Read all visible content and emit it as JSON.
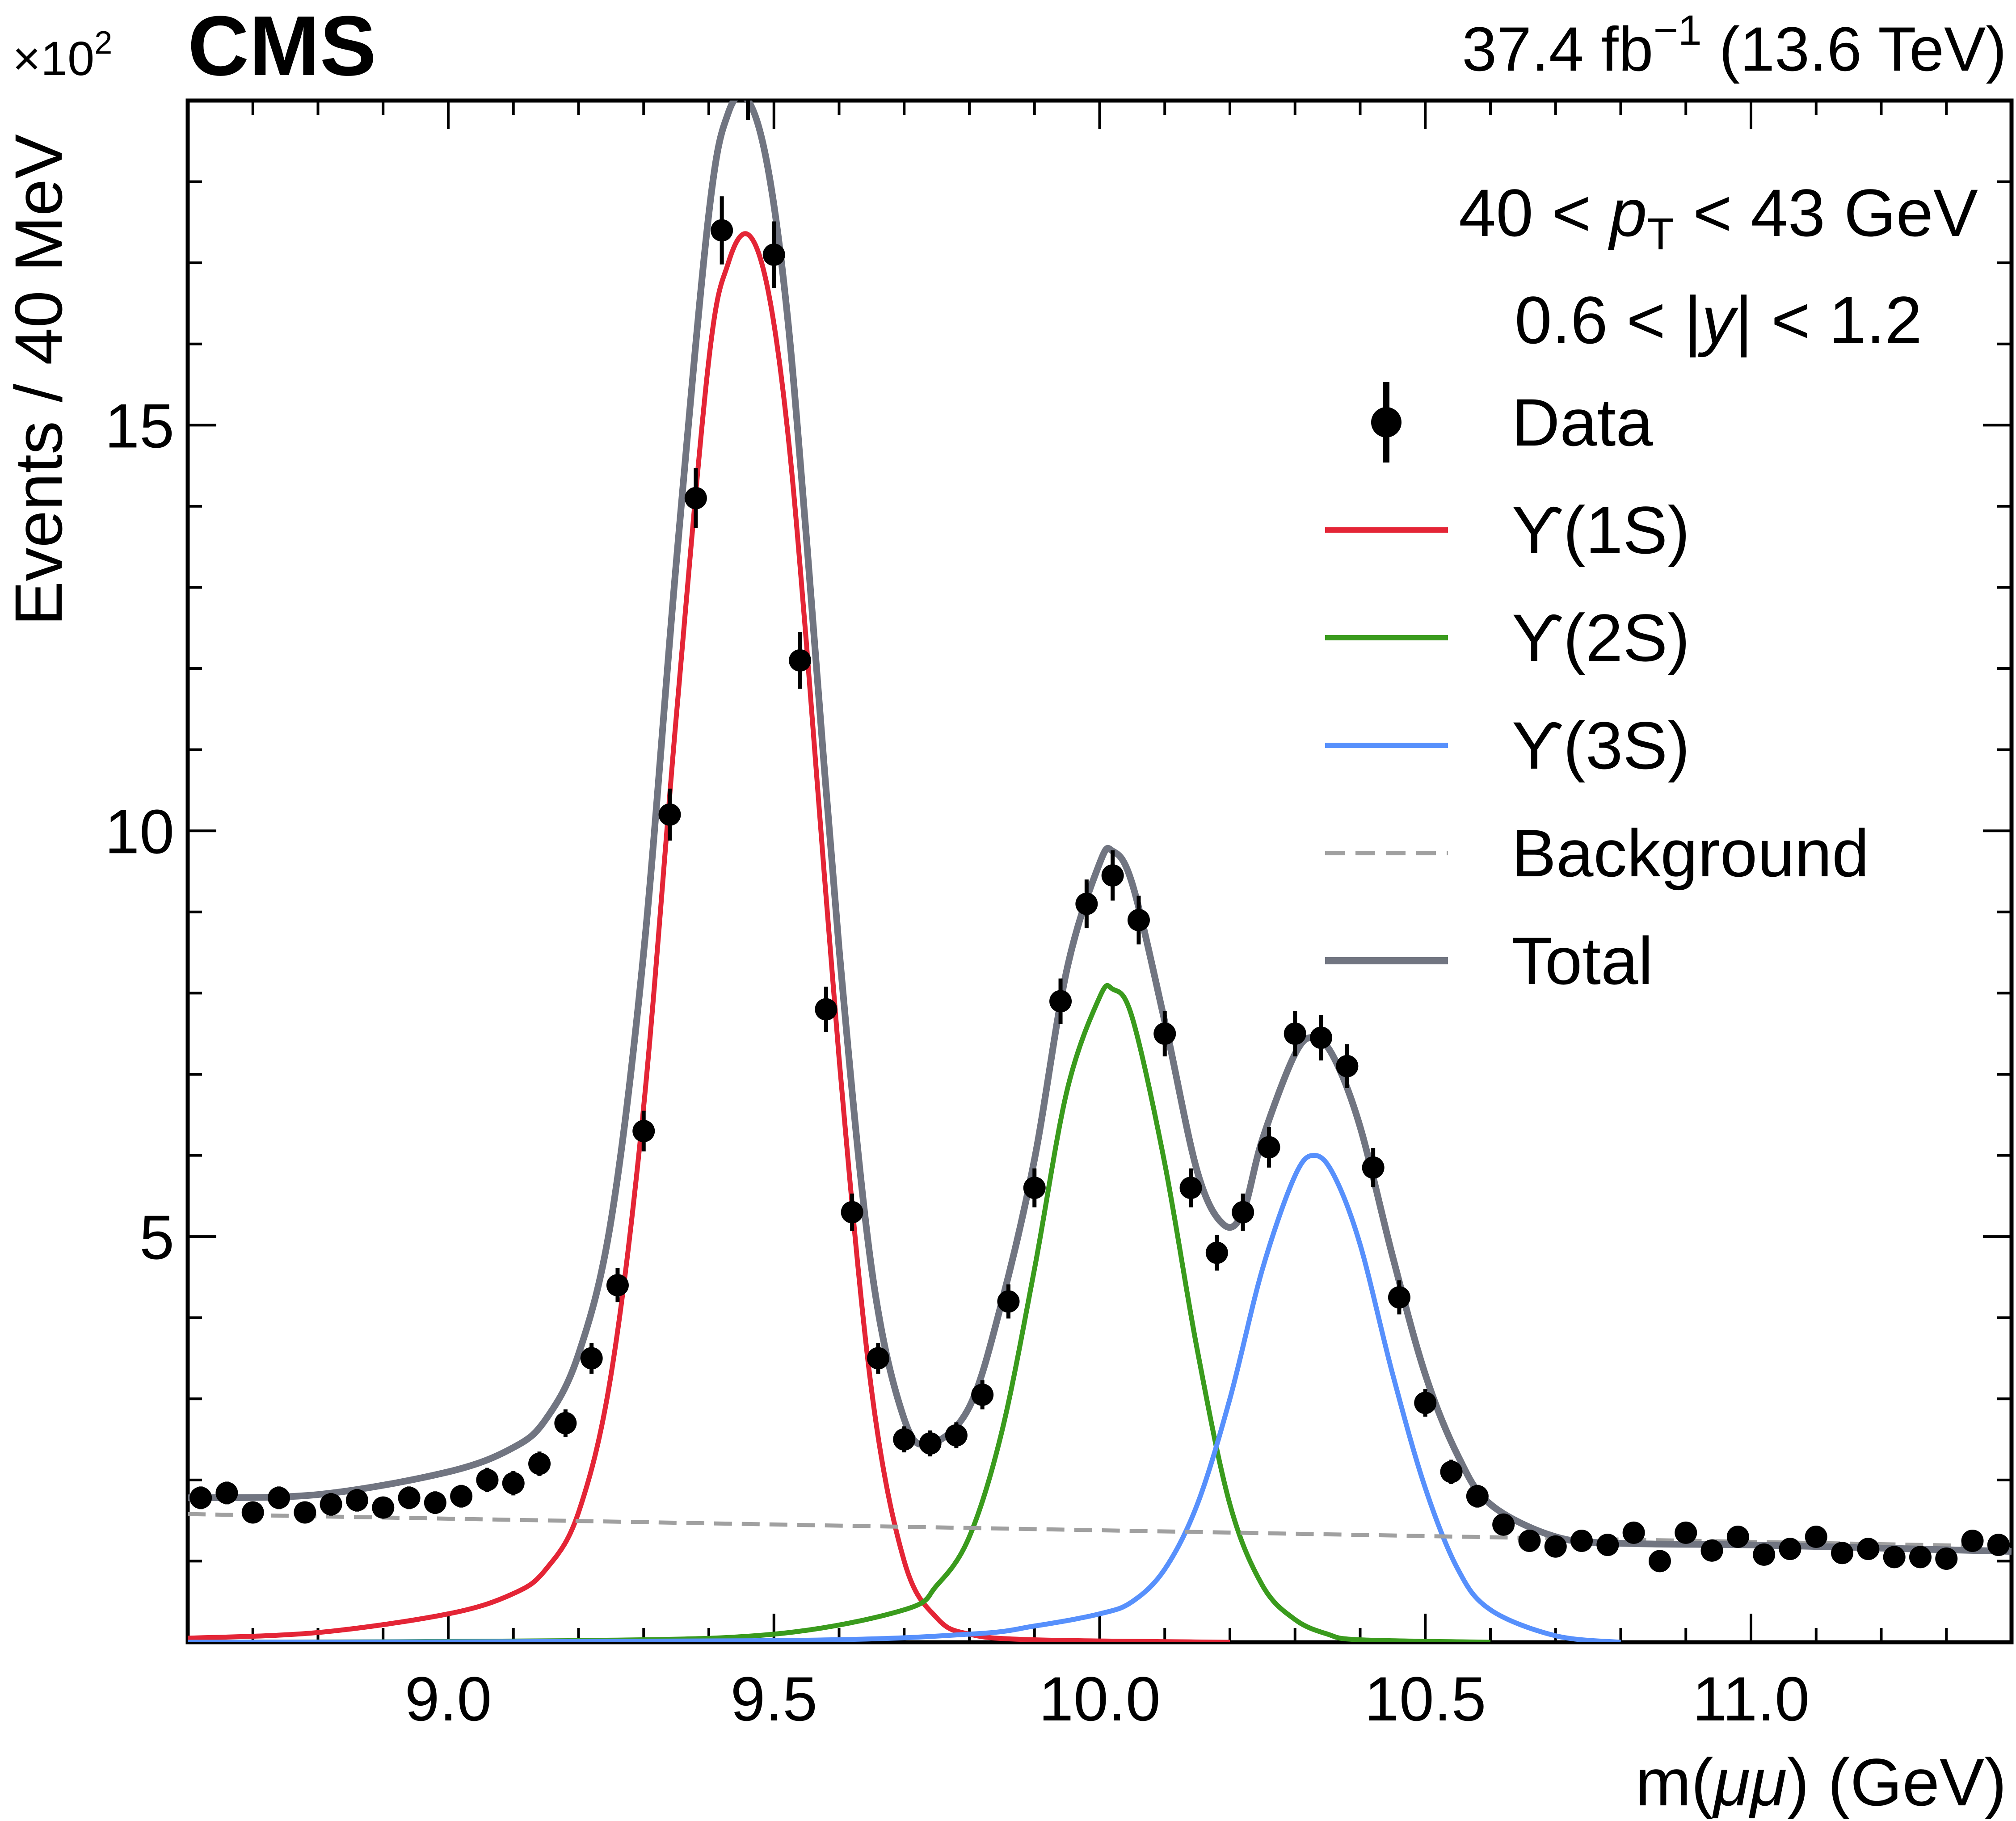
{
  "header": {
    "experiment": "CMS",
    "lumi_value": "37.4 fb",
    "lumi_exp": "−1",
    "energy": " (13.6 TeV)",
    "multiplier_base": "×10",
    "multiplier_exp": "2"
  },
  "cuts": {
    "pt_low": "40 < ",
    "pt_var": "p",
    "pt_sub": "T",
    "pt_high": " < 43 GeV",
    "y_low": "0.6 < |",
    "y_var": "y",
    "y_high": "| < 1.2"
  },
  "colors": {
    "data": "#000000",
    "ups1s": "#e42536",
    "ups2s": "#3a9b1d",
    "ups3s": "#5790fc",
    "background": "#a0a0a0",
    "total": "#717581"
  },
  "chart_data": {
    "type": "scatter",
    "xlabel_pre": "m(",
    "xlabel_var": "μμ",
    "xlabel_post": ") (GeV)",
    "ylabel": "Events / 40 MeV",
    "xlim": [
      8.6,
      11.4
    ],
    "ylim": [
      0,
      19
    ],
    "y_multiplier": "×10^2",
    "x_ticks": [
      "9.0",
      "9.5",
      "10.0",
      "10.5",
      "11.0"
    ],
    "y_ticks": [
      "5",
      "10",
      "15"
    ],
    "legend": [
      "Data",
      "ϒ(1S)",
      "ϒ(2S)",
      "ϒ(3S)",
      "Background",
      "Total"
    ],
    "legend_position": "top-right",
    "series": [
      {
        "name": "Data",
        "kind": "points",
        "x": [
          8.62,
          8.66,
          8.7,
          8.74,
          8.78,
          8.82,
          8.86,
          8.9,
          8.94,
          8.98,
          9.02,
          9.06,
          9.1,
          9.14,
          9.18,
          9.22,
          9.26,
          9.3,
          9.34,
          9.38,
          9.42,
          9.46,
          9.5,
          9.54,
          9.58,
          9.62,
          9.66,
          9.7,
          9.74,
          9.78,
          9.82,
          9.86,
          9.9,
          9.94,
          9.98,
          10.02,
          10.06,
          10.1,
          10.14,
          10.18,
          10.22,
          10.26,
          10.3,
          10.34,
          10.38,
          10.42,
          10.46,
          10.5,
          10.54,
          10.58,
          10.62,
          10.66,
          10.7,
          10.74,
          10.78,
          10.82,
          10.86,
          10.9,
          10.94,
          10.98,
          11.02,
          11.06,
          11.1,
          11.14,
          11.18,
          11.22,
          11.26,
          11.3,
          11.34,
          11.38
        ],
        "y": [
          1.78,
          1.84,
          1.6,
          1.78,
          1.6,
          1.7,
          1.75,
          1.66,
          1.78,
          1.72,
          1.8,
          2.0,
          1.96,
          2.2,
          2.7,
          3.5,
          4.4,
          6.3,
          10.2,
          14.1,
          17.4,
          19.2,
          17.1,
          12.1,
          7.8,
          5.3,
          3.5,
          2.5,
          2.45,
          2.55,
          3.05,
          4.2,
          5.6,
          7.9,
          9.1,
          9.45,
          8.9,
          7.5,
          5.6,
          4.8,
          5.3,
          6.1,
          7.5,
          7.45,
          7.1,
          5.85,
          4.25,
          2.95,
          2.1,
          1.8,
          1.45,
          1.25,
          1.18,
          1.25,
          1.2,
          1.35,
          1.0,
          1.35,
          1.13,
          1.3,
          1.08,
          1.15,
          1.3,
          1.1,
          1.15,
          1.05,
          1.05,
          1.03,
          1.25,
          1.2
        ],
        "yerr": [
          0.14,
          0.14,
          0.13,
          0.14,
          0.13,
          0.14,
          0.14,
          0.13,
          0.14,
          0.14,
          0.14,
          0.15,
          0.15,
          0.15,
          0.17,
          0.19,
          0.21,
          0.25,
          0.32,
          0.37,
          0.42,
          0.44,
          0.41,
          0.35,
          0.28,
          0.23,
          0.19,
          0.16,
          0.16,
          0.16,
          0.18,
          0.21,
          0.24,
          0.28,
          0.3,
          0.31,
          0.3,
          0.28,
          0.24,
          0.22,
          0.23,
          0.25,
          0.28,
          0.28,
          0.27,
          0.24,
          0.21,
          0.17,
          0.15,
          0.14,
          0.12,
          0.11,
          0.11,
          0.11,
          0.11,
          0.12,
          0.1,
          0.12,
          0.11,
          0.12,
          0.1,
          0.11,
          0.12,
          0.11,
          0.11,
          0.1,
          0.1,
          0.1,
          0.11,
          0.11
        ]
      },
      {
        "name": "ϒ(1S)",
        "kind": "line",
        "x": [
          8.6,
          8.8,
          9.0,
          9.1,
          9.15,
          9.2,
          9.25,
          9.3,
          9.35,
          9.4,
          9.43,
          9.46,
          9.49,
          9.52,
          9.55,
          9.6,
          9.65,
          9.7,
          9.75,
          9.8,
          9.9,
          10.2
        ],
        "y": [
          0.05,
          0.12,
          0.35,
          0.6,
          0.9,
          1.6,
          3.3,
          6.6,
          11.4,
          15.8,
          17.0,
          17.35,
          16.7,
          15.0,
          12.3,
          7.2,
          3.1,
          1.0,
          0.3,
          0.1,
          0.03,
          0.0
        ]
      },
      {
        "name": "ϒ(2S)",
        "kind": "line",
        "x": [
          8.6,
          9.2,
          9.5,
          9.7,
          9.75,
          9.8,
          9.85,
          9.9,
          9.95,
          10.0,
          10.02,
          10.05,
          10.1,
          10.15,
          10.2,
          10.25,
          10.3,
          10.35,
          10.4,
          10.6
        ],
        "y": [
          0.0,
          0.02,
          0.1,
          0.4,
          0.7,
          1.3,
          2.6,
          4.6,
          6.8,
          7.95,
          8.05,
          7.7,
          5.9,
          3.6,
          1.7,
          0.7,
          0.28,
          0.1,
          0.03,
          0.0
        ]
      },
      {
        "name": "ϒ(3S)",
        "kind": "line",
        "x": [
          8.6,
          9.5,
          9.8,
          9.9,
          10.0,
          10.05,
          10.1,
          10.15,
          10.2,
          10.25,
          10.3,
          10.33,
          10.36,
          10.4,
          10.45,
          10.5,
          10.55,
          10.6,
          10.7,
          10.8
        ],
        "y": [
          0.0,
          0.02,
          0.1,
          0.2,
          0.35,
          0.5,
          0.9,
          1.7,
          3.0,
          4.6,
          5.75,
          6.0,
          5.75,
          4.9,
          3.3,
          1.9,
          0.9,
          0.4,
          0.08,
          0.0
        ]
      },
      {
        "name": "Background",
        "kind": "dashed",
        "x": [
          8.6,
          11.4
        ],
        "y": [
          1.58,
          1.18
        ]
      },
      {
        "name": "Total",
        "kind": "line",
        "x": [
          8.6,
          8.8,
          9.0,
          9.1,
          9.15,
          9.2,
          9.25,
          9.3,
          9.35,
          9.4,
          9.43,
          9.46,
          9.49,
          9.52,
          9.55,
          9.6,
          9.65,
          9.7,
          9.74,
          9.8,
          9.85,
          9.9,
          9.95,
          10.0,
          10.02,
          10.05,
          10.1,
          10.15,
          10.19,
          10.22,
          10.25,
          10.3,
          10.33,
          10.36,
          10.4,
          10.45,
          10.5,
          10.55,
          10.6,
          10.7,
          10.8,
          11.0,
          11.2,
          11.4
        ],
        "y": [
          1.78,
          1.82,
          2.1,
          2.4,
          2.75,
          3.55,
          5.2,
          8.5,
          13.3,
          17.6,
          18.85,
          19.0,
          18.2,
          16.4,
          13.6,
          8.55,
          4.6,
          2.75,
          2.45,
          2.9,
          4.2,
          5.95,
          8.3,
          9.6,
          9.75,
          9.35,
          7.65,
          5.8,
          5.15,
          5.3,
          6.2,
          7.25,
          7.45,
          7.2,
          6.35,
          4.75,
          3.3,
          2.3,
          1.7,
          1.3,
          1.22,
          1.2,
          1.16,
          1.12
        ]
      }
    ]
  }
}
